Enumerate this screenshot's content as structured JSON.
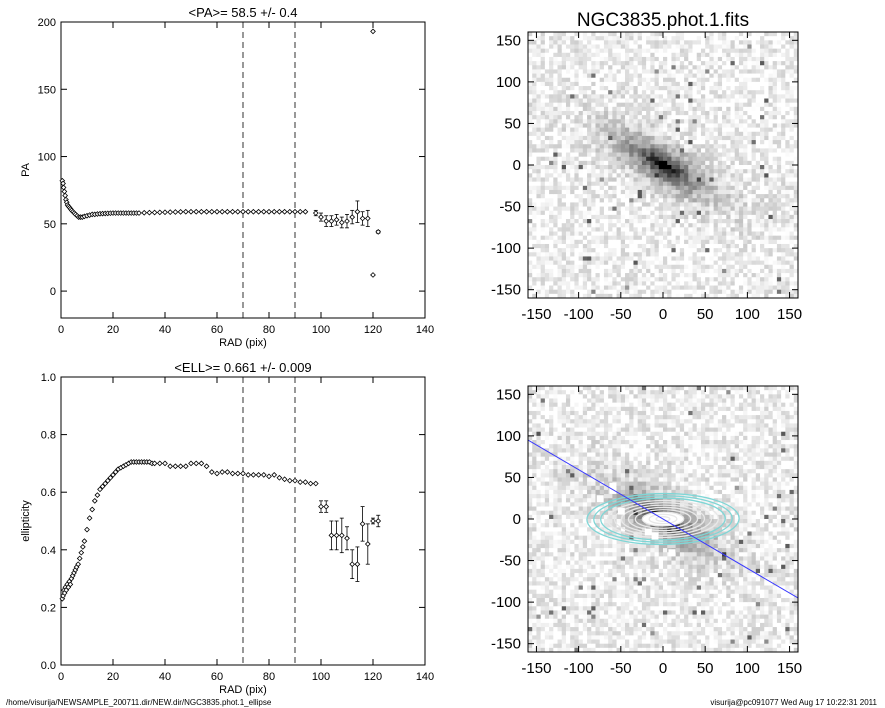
{
  "footer": {
    "path": "/home/visurija/NEWSAMPLE_200711.dir/NEW.dir/NGC3835.phot.1_ellipse",
    "user_stamp": "visurija@pc091077  Wed Aug 17 10:22:31 2011"
  },
  "images": {
    "top_title": "NGC3835.phot.1.fits",
    "ticks": [
      -150,
      -100,
      -50,
      0,
      50,
      100,
      150
    ],
    "range": [
      -160,
      160
    ],
    "galaxy_pa_deg": 58.5,
    "ellipticity": 0.661,
    "major_axis_line": [
      [
        -160,
        95
      ],
      [
        160,
        -95
      ]
    ],
    "colors": {
      "line": "#3a3aff",
      "contour_inner": "#e8e8e8",
      "contour_outer": "#7fd6d6",
      "mask": "#ffffff"
    }
  },
  "chart_data": [
    {
      "type": "scatter",
      "title": "<PA>=  58.5 +/-   0.4",
      "xlabel": "RAD (pix)",
      "ylabel": "PA",
      "xlim": [
        0,
        140
      ],
      "ylim": [
        -20,
        200
      ],
      "xticks": [
        0,
        20,
        40,
        60,
        80,
        100,
        120,
        140
      ],
      "yticks": [
        0,
        50,
        100,
        150,
        200
      ],
      "vlines": [
        70,
        90
      ],
      "series": [
        {
          "x": [
            0.5,
            0.8,
            1.0,
            1.3,
            1.6,
            1.9,
            2.2,
            2.5,
            2.9,
            3.3,
            3.7,
            4.1,
            4.6,
            5.1,
            5.6,
            6.2,
            6.8,
            7.5,
            8.2,
            9,
            10,
            11,
            12,
            13,
            14,
            15,
            16,
            17,
            18,
            19,
            20,
            21,
            22,
            23,
            24,
            25,
            26,
            27,
            28,
            29,
            30,
            32,
            34,
            36,
            38,
            40,
            42,
            44,
            46,
            48,
            50,
            52,
            54,
            56,
            58,
            60,
            62,
            64,
            66,
            68,
            70,
            72,
            74,
            76,
            78,
            80,
            82,
            84,
            86,
            88,
            90,
            92,
            94
          ],
          "y": [
            82,
            80,
            77,
            74,
            71,
            68,
            66,
            64,
            63,
            62,
            61,
            60,
            59,
            58,
            57,
            56,
            55,
            55,
            55,
            55.5,
            56,
            56.5,
            57,
            57,
            57.3,
            57.5,
            57.6,
            57.7,
            57.8,
            57.9,
            58,
            58,
            58,
            58,
            58,
            58,
            58,
            58,
            58,
            58,
            58,
            58.2,
            58.3,
            58.4,
            58.5,
            58.6,
            58.7,
            58.8,
            58.9,
            59,
            59,
            59,
            59,
            59,
            59,
            59,
            59,
            59,
            59,
            59,
            59,
            59,
            59,
            59,
            59,
            59,
            59,
            59,
            59,
            59,
            59,
            59,
            59
          ]
        },
        {
          "x": [
            98,
            100,
            102,
            104,
            106,
            108,
            110,
            112,
            114,
            116,
            118,
            120,
            122
          ],
          "y": [
            58,
            55,
            52,
            52,
            53,
            51,
            52,
            55,
            59,
            54,
            54,
            12,
            44
          ],
          "err": [
            2,
            3,
            4,
            4,
            4,
            4,
            5,
            5,
            8,
            5,
            6,
            0,
            1
          ]
        },
        {
          "x": [
            120
          ],
          "y": [
            193
          ]
        }
      ]
    },
    {
      "type": "scatter",
      "title": "<ELL>= 0.661 +/-  0.009",
      "xlabel": "RAD (pix)",
      "ylabel": "ellipticity",
      "xlim": [
        0,
        140
      ],
      "ylim": [
        0.0,
        1.0
      ],
      "xticks": [
        0,
        20,
        40,
        60,
        80,
        100,
        120,
        140
      ],
      "yticks": [
        0.0,
        0.2,
        0.4,
        0.6,
        0.8,
        1.0
      ],
      "vlines": [
        70,
        90
      ],
      "series": [
        {
          "x": [
            0.5,
            0.8,
            1.1,
            1.4,
            1.7,
            2.0,
            2.4,
            2.8,
            3.2,
            3.6,
            4.0,
            4.5,
            5.0,
            5.5,
            6.0,
            6.6,
            7.2,
            7.8,
            8.4,
            9,
            10,
            11,
            12,
            13,
            14,
            15,
            16,
            17,
            18,
            19,
            20,
            21,
            22,
            23,
            24,
            25,
            26,
            27,
            28,
            29,
            30,
            31,
            32,
            33,
            34,
            35,
            36,
            38,
            40,
            42,
            44,
            46,
            48,
            50,
            52,
            54,
            56,
            58,
            60,
            62,
            64,
            66,
            68,
            70,
            72,
            74,
            76,
            78,
            80,
            82,
            84,
            86,
            88,
            90,
            92,
            94,
            96,
            98
          ],
          "y": [
            0.23,
            0.24,
            0.26,
            0.25,
            0.27,
            0.26,
            0.28,
            0.27,
            0.29,
            0.28,
            0.3,
            0.31,
            0.32,
            0.33,
            0.34,
            0.35,
            0.37,
            0.39,
            0.41,
            0.43,
            0.47,
            0.51,
            0.54,
            0.57,
            0.59,
            0.61,
            0.62,
            0.63,
            0.64,
            0.65,
            0.66,
            0.67,
            0.68,
            0.685,
            0.69,
            0.695,
            0.7,
            0.705,
            0.705,
            0.705,
            0.705,
            0.705,
            0.705,
            0.705,
            0.705,
            0.7,
            0.7,
            0.7,
            0.7,
            0.69,
            0.69,
            0.69,
            0.69,
            0.7,
            0.7,
            0.7,
            0.69,
            0.67,
            0.665,
            0.67,
            0.67,
            0.665,
            0.665,
            0.665,
            0.66,
            0.66,
            0.66,
            0.66,
            0.655,
            0.66,
            0.65,
            0.645,
            0.64,
            0.64,
            0.635,
            0.635,
            0.63,
            0.63
          ]
        },
        {
          "x": [
            100,
            102,
            104,
            106,
            108,
            110,
            112,
            114,
            116,
            118,
            120,
            122
          ],
          "y": [
            0.55,
            0.55,
            0.45,
            0.45,
            0.45,
            0.44,
            0.35,
            0.35,
            0.49,
            0.42,
            0.5,
            0.5
          ],
          "err": [
            0.02,
            0.02,
            0.05,
            0.05,
            0.06,
            0.04,
            0.05,
            0.06,
            0.06,
            0.07,
            0.01,
            0.02
          ]
        }
      ]
    }
  ]
}
